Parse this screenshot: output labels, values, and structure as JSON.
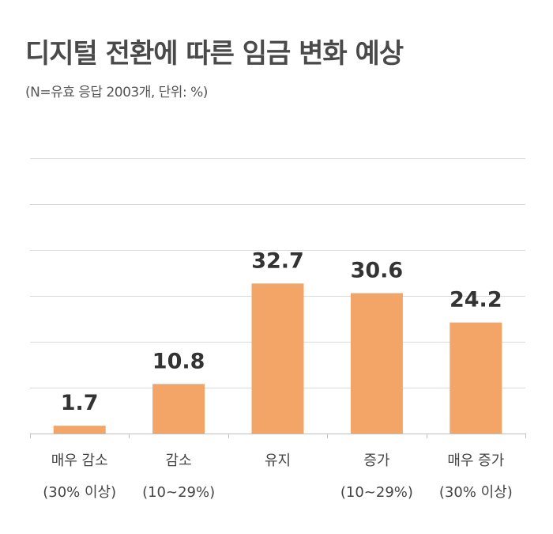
{
  "chart_data": {
    "type": "bar",
    "title": "디지털 전환에 따른 임금 변화 예상",
    "subtitle": "(N=유효 응답 2003개, 단위: %)",
    "categories": [
      [
        "매우 감소",
        "(30% 이상)"
      ],
      [
        "감소",
        "(10~29%)"
      ],
      [
        "유지",
        ""
      ],
      [
        "증가",
        "(10~29%)"
      ],
      [
        "매우 증가",
        "(30% 이상)"
      ]
    ],
    "values": [
      1.7,
      10.8,
      32.7,
      30.6,
      24.2
    ],
    "value_labels": [
      "1.7",
      "10.8",
      "32.7",
      "30.6",
      "24.2"
    ],
    "ylim": [
      0,
      60
    ],
    "grid": true,
    "colors": {
      "bar": "#F2A567",
      "grid": "#d9d9d9",
      "axis": "#bfbfbf"
    }
  }
}
